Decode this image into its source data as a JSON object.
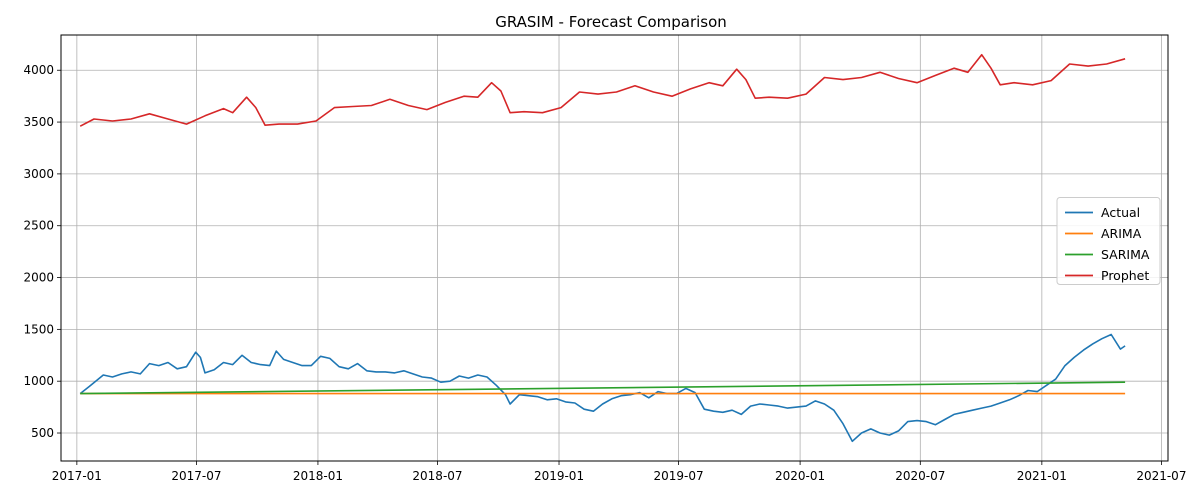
{
  "chart_data": {
    "type": "line",
    "title": "GRASIM - Forecast Comparison",
    "xlabel": "",
    "ylabel": "",
    "x_domain": [
      "2016-12-08",
      "2021-07-11"
    ],
    "ylim": [
      230,
      4340
    ],
    "x_ticks": [
      "2017-01",
      "2017-07",
      "2018-01",
      "2018-07",
      "2019-01",
      "2019-07",
      "2020-01",
      "2020-07",
      "2021-01",
      "2021-07"
    ],
    "y_ticks": [
      500,
      1000,
      1500,
      2000,
      2500,
      3000,
      3500,
      4000
    ],
    "grid": true,
    "legend_position": "center-right",
    "series": [
      {
        "name": "Actual",
        "color": "#1f77b4",
        "points": [
          [
            "2017-01-06",
            880
          ],
          [
            "2017-01-20",
            950
          ],
          [
            "2017-02-10",
            1060
          ],
          [
            "2017-02-24",
            1040
          ],
          [
            "2017-03-10",
            1070
          ],
          [
            "2017-03-24",
            1090
          ],
          [
            "2017-04-07",
            1070
          ],
          [
            "2017-04-21",
            1170
          ],
          [
            "2017-05-05",
            1150
          ],
          [
            "2017-05-19",
            1180
          ],
          [
            "2017-06-02",
            1120
          ],
          [
            "2017-06-16",
            1140
          ],
          [
            "2017-06-30",
            1280
          ],
          [
            "2017-07-07",
            1230
          ],
          [
            "2017-07-14",
            1080
          ],
          [
            "2017-07-28",
            1110
          ],
          [
            "2017-08-11",
            1180
          ],
          [
            "2017-08-25",
            1160
          ],
          [
            "2017-09-08",
            1250
          ],
          [
            "2017-09-22",
            1180
          ],
          [
            "2017-10-06",
            1160
          ],
          [
            "2017-10-20",
            1150
          ],
          [
            "2017-10-30",
            1290
          ],
          [
            "2017-11-10",
            1210
          ],
          [
            "2017-11-24",
            1180
          ],
          [
            "2017-12-08",
            1150
          ],
          [
            "2017-12-22",
            1150
          ],
          [
            "2018-01-05",
            1240
          ],
          [
            "2018-01-19",
            1220
          ],
          [
            "2018-02-02",
            1140
          ],
          [
            "2018-02-16",
            1120
          ],
          [
            "2018-03-02",
            1170
          ],
          [
            "2018-03-16",
            1100
          ],
          [
            "2018-03-30",
            1090
          ],
          [
            "2018-04-13",
            1090
          ],
          [
            "2018-04-27",
            1080
          ],
          [
            "2018-05-11",
            1100
          ],
          [
            "2018-05-25",
            1070
          ],
          [
            "2018-06-08",
            1040
          ],
          [
            "2018-06-22",
            1030
          ],
          [
            "2018-07-06",
            990
          ],
          [
            "2018-07-20",
            1000
          ],
          [
            "2018-08-03",
            1050
          ],
          [
            "2018-08-17",
            1030
          ],
          [
            "2018-08-31",
            1060
          ],
          [
            "2018-09-14",
            1040
          ],
          [
            "2018-09-28",
            960
          ],
          [
            "2018-10-12",
            870
          ],
          [
            "2018-10-19",
            780
          ],
          [
            "2018-11-02",
            870
          ],
          [
            "2018-11-16",
            860
          ],
          [
            "2018-11-30",
            850
          ],
          [
            "2018-12-14",
            820
          ],
          [
            "2018-12-28",
            830
          ],
          [
            "2019-01-11",
            800
          ],
          [
            "2019-01-25",
            790
          ],
          [
            "2019-02-08",
            730
          ],
          [
            "2019-02-22",
            710
          ],
          [
            "2019-03-08",
            780
          ],
          [
            "2019-03-22",
            830
          ],
          [
            "2019-04-05",
            860
          ],
          [
            "2019-04-19",
            870
          ],
          [
            "2019-05-03",
            890
          ],
          [
            "2019-05-17",
            840
          ],
          [
            "2019-05-31",
            900
          ],
          [
            "2019-06-14",
            880
          ],
          [
            "2019-06-28",
            880
          ],
          [
            "2019-07-12",
            930
          ],
          [
            "2019-07-26",
            890
          ],
          [
            "2019-08-09",
            730
          ],
          [
            "2019-08-23",
            710
          ],
          [
            "2019-09-06",
            700
          ],
          [
            "2019-09-20",
            720
          ],
          [
            "2019-10-04",
            680
          ],
          [
            "2019-10-18",
            760
          ],
          [
            "2019-11-01",
            780
          ],
          [
            "2019-11-15",
            770
          ],
          [
            "2019-11-29",
            760
          ],
          [
            "2019-12-13",
            740
          ],
          [
            "2019-12-27",
            750
          ],
          [
            "2020-01-10",
            760
          ],
          [
            "2020-01-24",
            810
          ],
          [
            "2020-02-07",
            780
          ],
          [
            "2020-02-21",
            720
          ],
          [
            "2020-03-06",
            590
          ],
          [
            "2020-03-20",
            420
          ],
          [
            "2020-04-03",
            500
          ],
          [
            "2020-04-17",
            540
          ],
          [
            "2020-05-01",
            500
          ],
          [
            "2020-05-15",
            480
          ],
          [
            "2020-05-29",
            520
          ],
          [
            "2020-06-12",
            610
          ],
          [
            "2020-06-26",
            620
          ],
          [
            "2020-07-10",
            610
          ],
          [
            "2020-07-24",
            580
          ],
          [
            "2020-08-07",
            630
          ],
          [
            "2020-08-21",
            680
          ],
          [
            "2020-09-04",
            700
          ],
          [
            "2020-09-18",
            720
          ],
          [
            "2020-10-02",
            740
          ],
          [
            "2020-10-16",
            760
          ],
          [
            "2020-10-30",
            790
          ],
          [
            "2020-11-13",
            820
          ],
          [
            "2020-11-27",
            860
          ],
          [
            "2020-12-11",
            910
          ],
          [
            "2020-12-25",
            900
          ],
          [
            "2021-01-08",
            960
          ],
          [
            "2021-01-22",
            1020
          ],
          [
            "2021-02-05",
            1150
          ],
          [
            "2021-02-19",
            1230
          ],
          [
            "2021-03-05",
            1300
          ],
          [
            "2021-03-19",
            1360
          ],
          [
            "2021-04-02",
            1410
          ],
          [
            "2021-04-16",
            1450
          ],
          [
            "2021-04-30",
            1310
          ],
          [
            "2021-05-07",
            1340
          ]
        ]
      },
      {
        "name": "ARIMA",
        "color": "#ff7f0e",
        "points": [
          [
            "2017-01-06",
            880
          ],
          [
            "2021-05-07",
            880
          ]
        ]
      },
      {
        "name": "SARIMA",
        "color": "#2ca02c",
        "points": [
          [
            "2017-01-06",
            880
          ],
          [
            "2021-05-07",
            990
          ]
        ]
      },
      {
        "name": "Prophet",
        "color": "#d62728",
        "points": [
          [
            "2017-01-06",
            3460
          ],
          [
            "2017-01-27",
            3530
          ],
          [
            "2017-02-24",
            3510
          ],
          [
            "2017-03-24",
            3530
          ],
          [
            "2017-04-21",
            3580
          ],
          [
            "2017-05-19",
            3530
          ],
          [
            "2017-06-16",
            3480
          ],
          [
            "2017-07-14",
            3560
          ],
          [
            "2017-08-11",
            3630
          ],
          [
            "2017-08-25",
            3590
          ],
          [
            "2017-09-15",
            3740
          ],
          [
            "2017-09-29",
            3640
          ],
          [
            "2017-10-13",
            3470
          ],
          [
            "2017-11-03",
            3480
          ],
          [
            "2017-12-01",
            3480
          ],
          [
            "2017-12-29",
            3510
          ],
          [
            "2018-01-26",
            3640
          ],
          [
            "2018-02-23",
            3650
          ],
          [
            "2018-03-23",
            3660
          ],
          [
            "2018-04-20",
            3720
          ],
          [
            "2018-05-18",
            3660
          ],
          [
            "2018-06-15",
            3620
          ],
          [
            "2018-07-13",
            3690
          ],
          [
            "2018-08-10",
            3750
          ],
          [
            "2018-08-31",
            3740
          ],
          [
            "2018-09-21",
            3880
          ],
          [
            "2018-10-05",
            3800
          ],
          [
            "2018-10-19",
            3590
          ],
          [
            "2018-11-09",
            3600
          ],
          [
            "2018-12-07",
            3590
          ],
          [
            "2019-01-04",
            3640
          ],
          [
            "2019-02-01",
            3790
          ],
          [
            "2019-03-01",
            3770
          ],
          [
            "2019-03-29",
            3790
          ],
          [
            "2019-04-26",
            3850
          ],
          [
            "2019-05-24",
            3790
          ],
          [
            "2019-06-21",
            3750
          ],
          [
            "2019-07-19",
            3820
          ],
          [
            "2019-08-16",
            3880
          ],
          [
            "2019-09-06",
            3850
          ],
          [
            "2019-09-27",
            4010
          ],
          [
            "2019-10-11",
            3910
          ],
          [
            "2019-10-25",
            3730
          ],
          [
            "2019-11-15",
            3740
          ],
          [
            "2019-12-13",
            3730
          ],
          [
            "2020-01-10",
            3770
          ],
          [
            "2020-02-07",
            3930
          ],
          [
            "2020-03-06",
            3910
          ],
          [
            "2020-04-03",
            3930
          ],
          [
            "2020-05-01",
            3980
          ],
          [
            "2020-05-29",
            3920
          ],
          [
            "2020-06-26",
            3880
          ],
          [
            "2020-07-24",
            3950
          ],
          [
            "2020-08-21",
            4020
          ],
          [
            "2020-09-11",
            3980
          ],
          [
            "2020-10-02",
            4150
          ],
          [
            "2020-10-16",
            4020
          ],
          [
            "2020-10-30",
            3860
          ],
          [
            "2020-11-20",
            3880
          ],
          [
            "2020-12-18",
            3860
          ],
          [
            "2021-01-15",
            3900
          ],
          [
            "2021-02-12",
            4060
          ],
          [
            "2021-03-12",
            4040
          ],
          [
            "2021-04-09",
            4060
          ],
          [
            "2021-05-07",
            4110
          ]
        ]
      }
    ]
  }
}
